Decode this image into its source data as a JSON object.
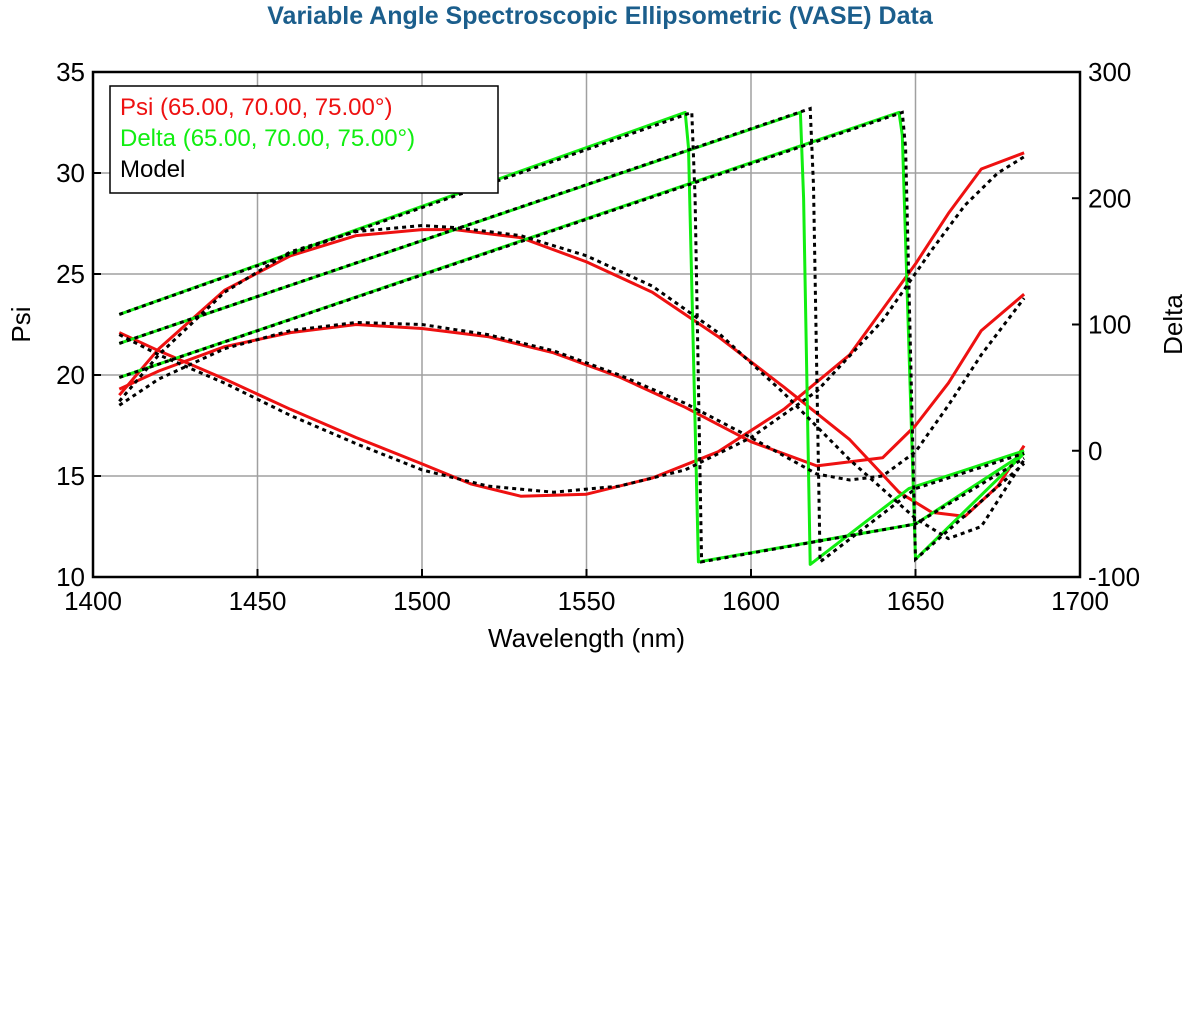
{
  "chart_data": {
    "type": "line",
    "title": "Variable Angle Spectroscopic Ellipsometric (VASE) Data",
    "title_color": "#1b5e8c",
    "xlabel": "Wavelength (nm)",
    "ylabel_left": "Psi",
    "ylabel_right": "Delta",
    "xlim": [
      1400,
      1700
    ],
    "ylim_left": [
      10,
      35
    ],
    "ylim_right": [
      -100,
      300
    ],
    "x_ticks": [
      "1400",
      "1450",
      "1500",
      "1550",
      "1600",
      "1650",
      "1700"
    ],
    "y_left_ticks": [
      "10",
      "15",
      "20",
      "25",
      "30",
      "35"
    ],
    "y_right_ticks": [
      "-100",
      "0",
      "100",
      "200",
      "300"
    ],
    "grid": true,
    "legend_position": "top-left",
    "legend": [
      {
        "label": "Psi (65.00, 70.00, 75.00°)",
        "color": "#ee1111"
      },
      {
        "label": "Delta (65.00, 70.00, 75.00°)",
        "color": "#11ee11"
      },
      {
        "label": "Model",
        "color": "#000000"
      }
    ],
    "colors": {
      "psi": "#ee1111",
      "delta": "#11ee11",
      "model": "#000000",
      "grid": "#a0a0a0"
    },
    "series": [
      {
        "group": "psi",
        "axis": "left",
        "x": [
          1408,
          1420,
          1440,
          1460,
          1480,
          1500,
          1515,
          1530,
          1550,
          1570,
          1590,
          1610,
          1630,
          1650,
          1660,
          1670,
          1683
        ],
        "values": [
          22.1,
          21.2,
          19.8,
          18.3,
          16.9,
          15.6,
          14.6,
          14.0,
          14.1,
          14.9,
          16.2,
          18.3,
          21.0,
          25.5,
          28.0,
          30.2,
          31.0
        ]
      },
      {
        "group": "psi",
        "axis": "left",
        "x": [
          1408,
          1420,
          1440,
          1460,
          1480,
          1500,
          1520,
          1540,
          1560,
          1580,
          1600,
          1620,
          1640,
          1650,
          1660,
          1670,
          1683
        ],
        "values": [
          19.3,
          20.2,
          21.4,
          22.1,
          22.5,
          22.3,
          21.9,
          21.1,
          19.9,
          18.4,
          16.7,
          15.5,
          15.9,
          17.5,
          19.6,
          22.2,
          24.0
        ]
      },
      {
        "group": "psi",
        "axis": "left",
        "x": [
          1408,
          1420,
          1440,
          1460,
          1480,
          1500,
          1510,
          1530,
          1550,
          1570,
          1590,
          1610,
          1630,
          1645,
          1655,
          1665,
          1675,
          1683
        ],
        "values": [
          19.0,
          21.3,
          24.2,
          25.9,
          26.9,
          27.2,
          27.2,
          26.8,
          25.6,
          24.1,
          21.9,
          19.4,
          16.8,
          14.2,
          13.2,
          13.0,
          14.5,
          16.5
        ]
      },
      {
        "group": "delta",
        "axis": "right",
        "x": [
          1408,
          1580,
          1581,
          1584,
          1650,
          1683
        ],
        "values": [
          108,
          268,
          240,
          -88,
          -58,
          -2
        ]
      },
      {
        "group": "delta",
        "axis": "right",
        "x": [
          1408,
          1615,
          1616,
          1618,
          1648,
          1683
        ],
        "values": [
          85,
          268,
          200,
          -90,
          -30,
          0
        ]
      },
      {
        "group": "delta",
        "axis": "right",
        "x": [
          1408,
          1645,
          1646,
          1650,
          1683
        ],
        "values": [
          58,
          268,
          250,
          -86,
          -2
        ]
      }
    ],
    "model_series": [
      {
        "axis": "left",
        "x": [
          1408,
          1420,
          1440,
          1460,
          1480,
          1500,
          1520,
          1540,
          1560,
          1580,
          1600,
          1620,
          1640,
          1655,
          1665,
          1675,
          1683
        ],
        "values": [
          22.0,
          21.0,
          19.6,
          18.0,
          16.6,
          15.3,
          14.5,
          14.2,
          14.5,
          15.3,
          16.9,
          19.2,
          22.7,
          26.2,
          28.4,
          30.0,
          30.8
        ]
      },
      {
        "axis": "left",
        "x": [
          1408,
          1420,
          1440,
          1460,
          1480,
          1500,
          1520,
          1540,
          1560,
          1580,
          1600,
          1620,
          1630,
          1640,
          1650,
          1660,
          1670,
          1683
        ],
        "values": [
          18.5,
          19.8,
          21.3,
          22.2,
          22.6,
          22.5,
          22.0,
          21.2,
          20.0,
          18.6,
          16.9,
          15.1,
          14.8,
          15.0,
          16.2,
          18.5,
          21.0,
          23.8
        ]
      },
      {
        "axis": "left",
        "x": [
          1408,
          1420,
          1440,
          1460,
          1480,
          1500,
          1510,
          1530,
          1550,
          1570,
          1590,
          1610,
          1630,
          1650,
          1660,
          1670,
          1683
        ],
        "values": [
          18.7,
          21.0,
          24.1,
          26.1,
          27.1,
          27.4,
          27.3,
          26.9,
          25.9,
          24.4,
          22.1,
          19.1,
          15.8,
          12.9,
          11.9,
          12.5,
          15.8
        ]
      },
      {
        "axis": "right",
        "x": [
          1408,
          1582,
          1583,
          1585,
          1650,
          1683
        ],
        "values": [
          108,
          268,
          200,
          -88,
          -58,
          -6
        ]
      },
      {
        "axis": "right",
        "x": [
          1408,
          1618,
          1619,
          1621,
          1650,
          1683
        ],
        "values": [
          85,
          271,
          210,
          -88,
          -30,
          -2
        ]
      },
      {
        "axis": "right",
        "x": [
          1408,
          1646,
          1647,
          1650,
          1683
        ],
        "values": [
          58,
          268,
          240,
          -86,
          -10
        ]
      }
    ]
  }
}
